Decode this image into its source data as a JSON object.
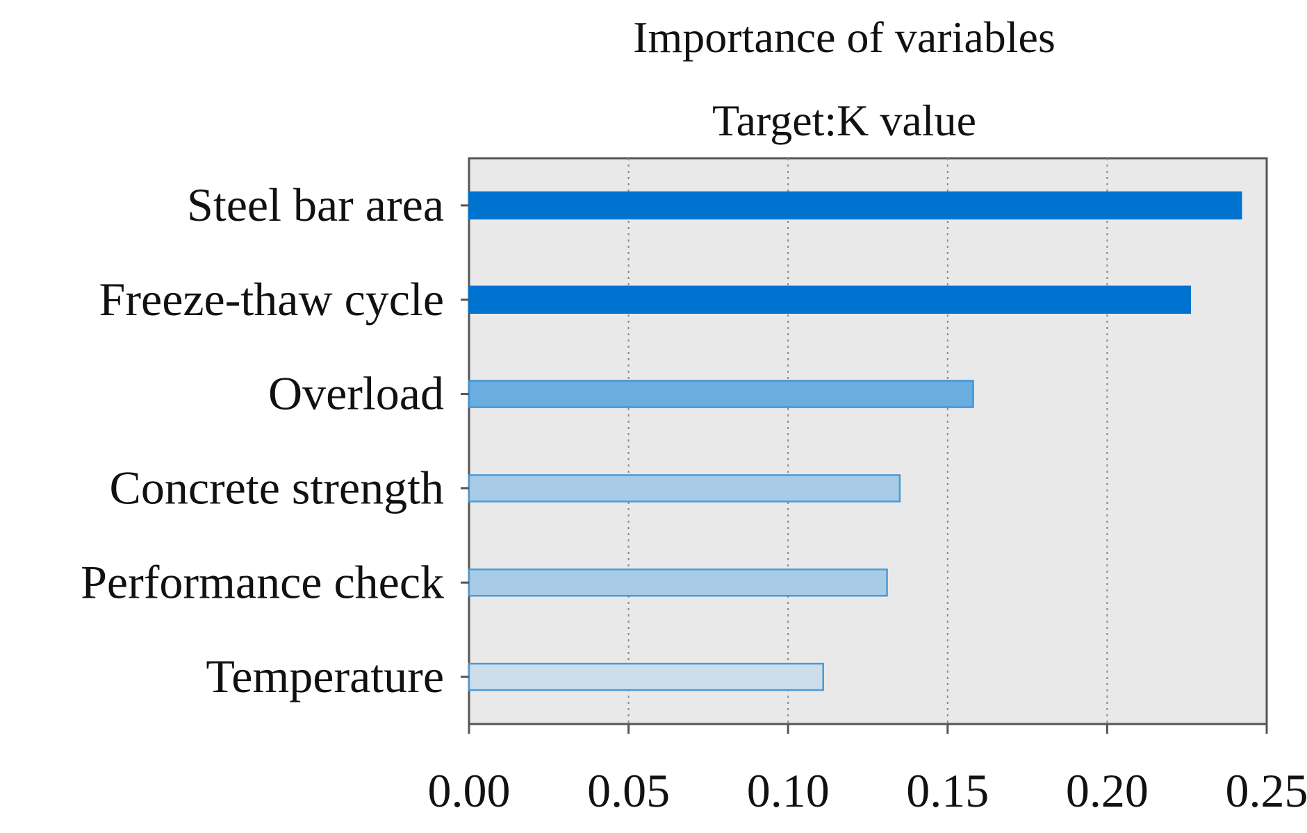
{
  "chart_data": {
    "type": "bar",
    "orientation": "horizontal",
    "title": "Importance of variables",
    "subtitle": "Target:K value",
    "xlabel": "",
    "ylabel": "",
    "xlim": [
      0,
      0.25
    ],
    "x_ticks": [
      "0.00",
      "0.05",
      "0.10",
      "0.15",
      "0.20",
      "0.25"
    ],
    "x_tick_values": [
      0,
      0.05,
      0.1,
      0.15,
      0.2,
      0.25
    ],
    "grid": "vertical dotted",
    "categories": [
      "Steel bar area",
      "Freeze-thaw cycle",
      "Overload",
      "Concrete strength",
      "Performance check",
      "Temperature"
    ],
    "values": [
      0.242,
      0.226,
      0.158,
      0.135,
      0.131,
      0.111
    ],
    "colors": {
      "plot_background": "#e9e9e9",
      "axis": "#555555",
      "grid": "#888888",
      "bar_fills": [
        "#0072d0",
        "#0072d0",
        "#6aaee0",
        "#a8cbe6",
        "#a8cbe6",
        "#cddde9"
      ],
      "bar_edges": [
        "#0072d0",
        "#0072d0",
        "#3f95d8",
        "#4a9ad8",
        "#4a9ad8",
        "#4a9ad8"
      ]
    }
  }
}
